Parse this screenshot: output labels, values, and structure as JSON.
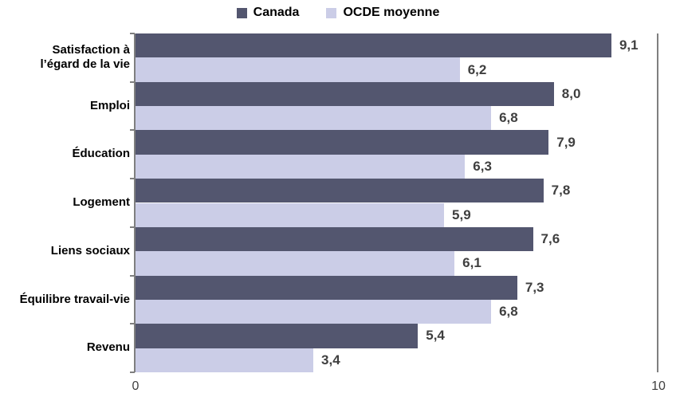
{
  "chart_data": {
    "type": "bar",
    "orientation": "horizontal",
    "title": "",
    "categories": [
      "Satisfaction à\nl’égard de la vie",
      "Emploi",
      "Éducation",
      "Logement",
      "Liens sociaux",
      "Équilibre travail-vie",
      "Revenu"
    ],
    "series": [
      {
        "name": "Canada",
        "color": "#53566F",
        "values": [
          9.1,
          8.0,
          7.9,
          7.8,
          7.6,
          7.3,
          5.4
        ],
        "labels": [
          "9,1",
          "8,0",
          "7,9",
          "7,8",
          "7,6",
          "7,3",
          "5,4"
        ]
      },
      {
        "name": "OCDE moyenne",
        "color": "#CBCDE7",
        "values": [
          6.2,
          6.8,
          6.3,
          5.9,
          6.1,
          6.8,
          3.4
        ],
        "labels": [
          "6,2",
          "6,8",
          "6,3",
          "5,9",
          "6,1",
          "6,8",
          "3,4"
        ]
      }
    ],
    "xlim": [
      0,
      10
    ],
    "x_ticks": [
      "0",
      "10"
    ],
    "legend_position": "top",
    "grid": false,
    "value_labels_shown": true
  },
  "colors": {
    "canada_bar": "#53566F",
    "ocde_bar": "#CBCDE7",
    "axis_line": "#7F7F7F",
    "value_text": "#3F3F3F",
    "category_text": "#000000",
    "axis_tick_text": "#3F3F3F",
    "background": "#FFFFFF"
  }
}
